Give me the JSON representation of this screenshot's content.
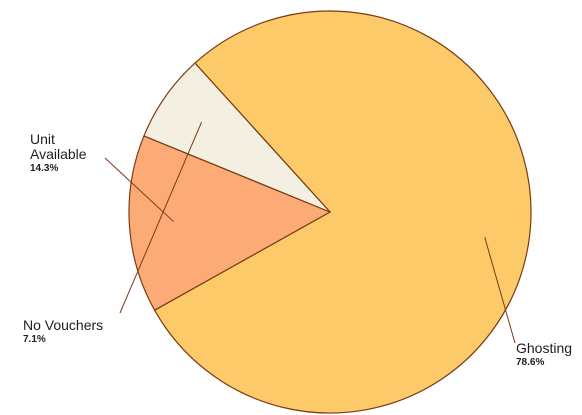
{
  "chart_data": {
    "type": "pie",
    "slices": [
      {
        "label": "Ghosting",
        "display_lines": [
          "Ghosting"
        ],
        "value": 78.6,
        "value_label": "78.6%",
        "color": "#fdca6a"
      },
      {
        "label": "Unit Available",
        "display_lines": [
          "Unit",
          "Available"
        ],
        "value": 14.3,
        "value_label": "14.3%",
        "color": "#fcab77"
      },
      {
        "label": "No Vouchers",
        "display_lines": [
          "No Vouchers"
        ],
        "value": 7.1,
        "value_label": "7.1%",
        "color": "#f3f0e2"
      }
    ],
    "stroke_color": "#7a3b12",
    "legend": "none",
    "title": ""
  }
}
